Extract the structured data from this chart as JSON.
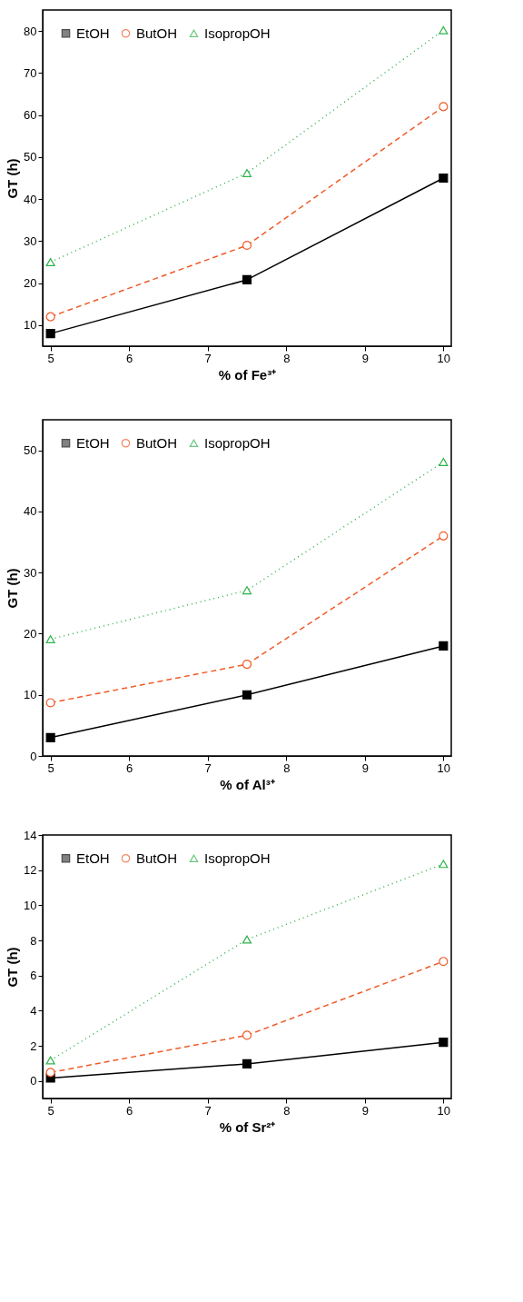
{
  "chart_data": [
    {
      "type": "line",
      "xlabel": "% of Fe³⁺",
      "ylabel": "GT (h)",
      "x": [
        5,
        7.5,
        10
      ],
      "xlim": [
        4.9,
        10.1
      ],
      "ylim": [
        5,
        85
      ],
      "xticks": [
        5,
        6,
        7,
        8,
        9,
        10
      ],
      "yticks": [
        10,
        20,
        30,
        40,
        50,
        60,
        70,
        80
      ],
      "legend": "top left",
      "grid": false,
      "series": [
        {
          "name": "EtOH",
          "color": "#000000",
          "values": [
            8,
            20.8,
            45
          ],
          "marker": "square",
          "line_style": "solid"
        },
        {
          "name": "ButOH",
          "color": "#f05a28",
          "values": [
            12,
            29,
            62
          ],
          "marker": "circle",
          "line_style": "dashed"
        },
        {
          "name": "IsopropOH",
          "color": "#2db34a",
          "values": [
            25,
            46.2,
            80.2
          ],
          "marker": "triangle",
          "line_style": "dotted"
        }
      ]
    },
    {
      "type": "line",
      "xlabel": "% of Al³⁺",
      "ylabel": "GT (h)",
      "x": [
        5,
        7.5,
        10
      ],
      "xlim": [
        4.9,
        10.1
      ],
      "ylim": [
        0,
        55
      ],
      "xticks": [
        5,
        6,
        7,
        8,
        9,
        10
      ],
      "yticks": [
        0,
        10,
        20,
        30,
        40,
        50
      ],
      "legend": "top left",
      "grid": false,
      "series": [
        {
          "name": "EtOH",
          "color": "#000000",
          "values": [
            3,
            10,
            18
          ],
          "marker": "square",
          "line_style": "solid"
        },
        {
          "name": "ButOH",
          "color": "#f05a28",
          "values": [
            8.7,
            15,
            36
          ],
          "marker": "circle",
          "line_style": "dashed"
        },
        {
          "name": "IsopropOH",
          "color": "#2db34a",
          "values": [
            19.1,
            27.1,
            48.1
          ],
          "marker": "triangle",
          "line_style": "dotted"
        }
      ]
    },
    {
      "type": "line",
      "xlabel": "% of Sr²⁺",
      "ylabel": "GT (h)",
      "x": [
        5,
        7.5,
        10
      ],
      "xlim": [
        4.9,
        10.1
      ],
      "ylim": [
        -1,
        14
      ],
      "xticks": [
        5,
        6,
        7,
        8,
        9,
        10
      ],
      "yticks": [
        0,
        2,
        4,
        6,
        8,
        10,
        12,
        14
      ],
      "legend": "top left",
      "grid": false,
      "series": [
        {
          "name": "EtOH",
          "color": "#000000",
          "values": [
            0.17,
            0.97,
            2.2
          ],
          "marker": "square",
          "line_style": "solid"
        },
        {
          "name": "ButOH",
          "color": "#f05a28",
          "values": [
            0.48,
            2.6,
            6.8
          ],
          "marker": "circle",
          "line_style": "dashed"
        },
        {
          "name": "IsopropOH",
          "color": "#2db34a",
          "values": [
            1.17,
            8.05,
            12.35
          ],
          "marker": "triangle",
          "line_style": "dotted"
        }
      ]
    }
  ]
}
